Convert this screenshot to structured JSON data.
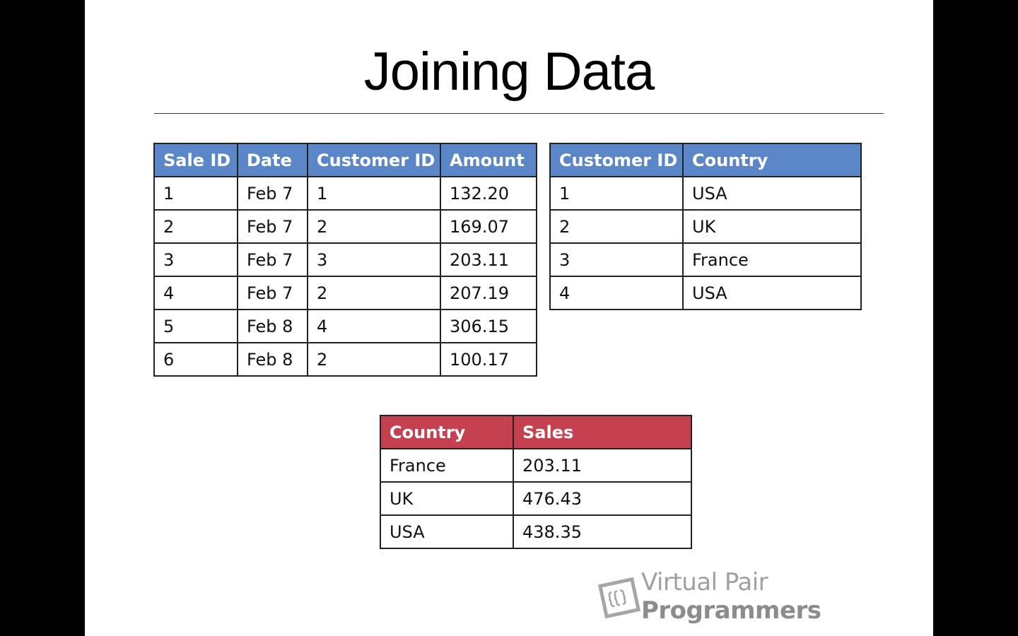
{
  "slide": {
    "title": "Joining Data"
  },
  "sales_table": {
    "headers": [
      "Sale ID",
      "Date",
      "Customer ID",
      "Amount"
    ],
    "rows": [
      [
        "1",
        "Feb 7",
        "1",
        "132.20"
      ],
      [
        "2",
        "Feb 7",
        "2",
        "169.07"
      ],
      [
        "3",
        "Feb 7",
        "3",
        "203.11"
      ],
      [
        "4",
        "Feb 7",
        "2",
        "207.19"
      ],
      [
        "5",
        "Feb 8",
        "4",
        "306.15"
      ],
      [
        "6",
        "Feb 8",
        "2",
        "100.17"
      ]
    ],
    "header_color": "#5b87c8"
  },
  "customers_table": {
    "headers": [
      "Customer ID",
      "Country"
    ],
    "rows": [
      [
        "1",
        "USA"
      ],
      [
        "2",
        "UK"
      ],
      [
        "3",
        "France"
      ],
      [
        "4",
        "USA"
      ]
    ],
    "header_color": "#5b87c8"
  },
  "result_table": {
    "headers": [
      "Country",
      "Sales"
    ],
    "rows": [
      [
        "France",
        "203.11"
      ],
      [
        "UK",
        "476.43"
      ],
      [
        "USA",
        "438.35"
      ]
    ],
    "header_color": "#c5414f"
  },
  "watermark": {
    "icon": "vpp-logo-icon",
    "text_light": "Virtual Pair ",
    "text_bold": "Programmers"
  }
}
